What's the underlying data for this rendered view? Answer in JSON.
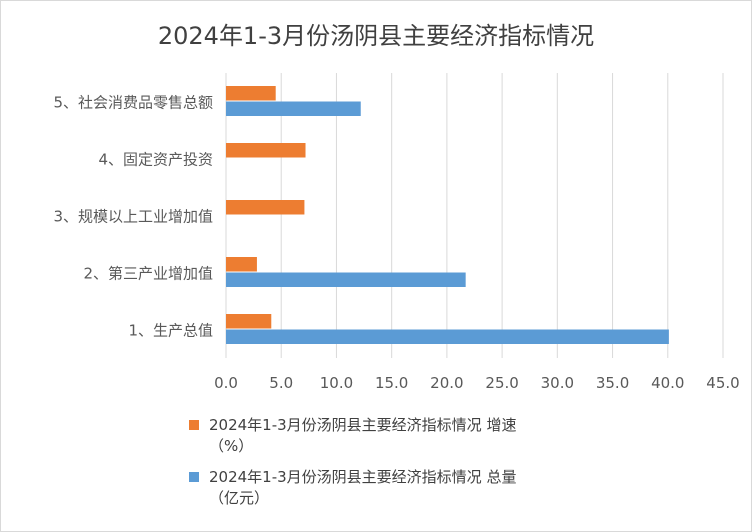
{
  "chart_data": {
    "type": "bar",
    "orientation": "horizontal",
    "title": "2024年1-3月份汤阴县主要经济指标情况",
    "categories": [
      "1、生产总值",
      "2、第三产业增加值",
      "3、规模以上工业增加值",
      "4、固定资产投资",
      "5、社会消费品零售总额"
    ],
    "series": [
      {
        "name": "2024年1-3月份汤阴县主要经济指标情况 增速（%）",
        "legend_lines": [
          "2024年1-3月份汤阴县主要经济指标情况 增速",
          "（%）"
        ],
        "color": "#ed7d31",
        "values": [
          4.1,
          2.8,
          7.1,
          7.2,
          4.5
        ]
      },
      {
        "name": "2024年1-3月份汤阴县主要经济指标情况 总量（亿元）",
        "legend_lines": [
          "2024年1-3月份汤阴县主要经济指标情况 总量",
          "（亿元）"
        ],
        "color": "#5b9bd5",
        "values": [
          40.1,
          21.7,
          null,
          null,
          12.2
        ]
      }
    ],
    "xlim": [
      0,
      45
    ],
    "xticks": [
      "0.0",
      "5.0",
      "10.0",
      "15.0",
      "20.0",
      "25.0",
      "30.0",
      "35.0",
      "40.0",
      "45.0"
    ],
    "grid": true,
    "legend_position": "bottom"
  }
}
